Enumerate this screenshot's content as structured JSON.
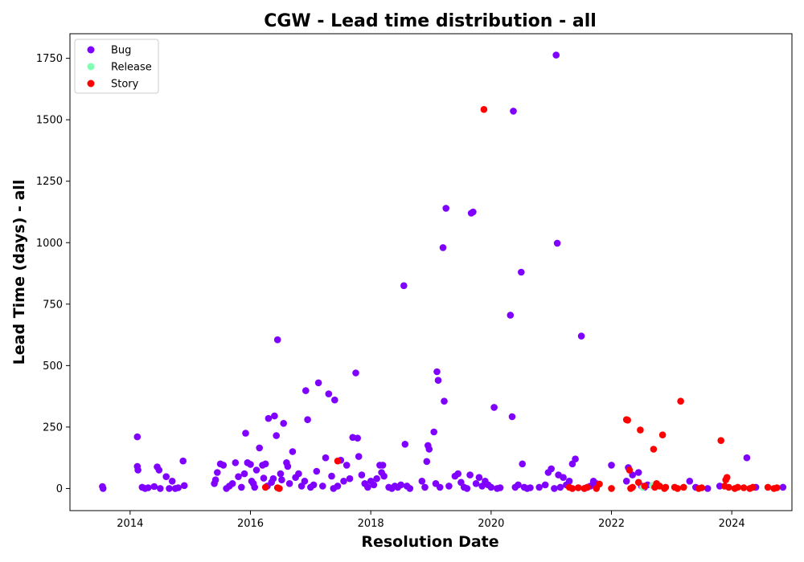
{
  "chart_data": {
    "type": "scatter",
    "title": "CGW - Lead time distribution - all",
    "xlabel": "Resolution Date",
    "ylabel": "Lead Time (days) - all",
    "xlim": [
      2013.0,
      2025.0
    ],
    "ylim": [
      -90,
      1850
    ],
    "x_ticks": [
      2014,
      2016,
      2018,
      2020,
      2022,
      2024
    ],
    "y_ticks": [
      0,
      250,
      500,
      750,
      1000,
      1250,
      1500,
      1750
    ],
    "grid": false,
    "legend_position": "top-left",
    "series": [
      {
        "name": "Bug",
        "color": "#8000ff",
        "points": [
          [
            2013.54,
            8
          ],
          [
            2013.55,
            0
          ],
          [
            2014.12,
            210
          ],
          [
            2014.12,
            90
          ],
          [
            2014.13,
            75
          ],
          [
            2014.2,
            5
          ],
          [
            2014.25,
            0
          ],
          [
            2014.3,
            3
          ],
          [
            2014.4,
            8
          ],
          [
            2014.45,
            88
          ],
          [
            2014.48,
            75
          ],
          [
            2014.5,
            0
          ],
          [
            2014.6,
            48
          ],
          [
            2014.65,
            0
          ],
          [
            2014.7,
            30
          ],
          [
            2014.75,
            0
          ],
          [
            2014.8,
            3
          ],
          [
            2014.88,
            112
          ],
          [
            2014.9,
            12
          ],
          [
            2015.4,
            20
          ],
          [
            2015.42,
            35
          ],
          [
            2015.45,
            65
          ],
          [
            2015.5,
            100
          ],
          [
            2015.55,
            95
          ],
          [
            2015.6,
            0
          ],
          [
            2015.65,
            10
          ],
          [
            2015.7,
            20
          ],
          [
            2015.75,
            105
          ],
          [
            2015.8,
            48
          ],
          [
            2015.85,
            5
          ],
          [
            2015.9,
            60
          ],
          [
            2015.95,
            105
          ],
          [
            2016.0,
            98
          ],
          [
            2016.02,
            30
          ],
          [
            2016.05,
            20
          ],
          [
            2016.07,
            5
          ],
          [
            2016.1,
            75
          ],
          [
            2015.92,
            225
          ],
          [
            2016.15,
            165
          ],
          [
            2016.2,
            95
          ],
          [
            2016.22,
            42
          ],
          [
            2016.25,
            100
          ],
          [
            2016.28,
            10
          ],
          [
            2016.3,
            285
          ],
          [
            2016.35,
            25
          ],
          [
            2016.38,
            40
          ],
          [
            2016.4,
            295
          ],
          [
            2016.43,
            215
          ],
          [
            2016.45,
            605
          ],
          [
            2016.5,
            60
          ],
          [
            2016.52,
            35
          ],
          [
            2016.55,
            265
          ],
          [
            2016.6,
            105
          ],
          [
            2016.62,
            90
          ],
          [
            2016.65,
            20
          ],
          [
            2016.7,
            150
          ],
          [
            2016.75,
            45
          ],
          [
            2016.8,
            60
          ],
          [
            2016.85,
            10
          ],
          [
            2016.9,
            30
          ],
          [
            2016.92,
            398
          ],
          [
            2016.95,
            280
          ],
          [
            2017.0,
            5
          ],
          [
            2017.05,
            15
          ],
          [
            2017.1,
            70
          ],
          [
            2017.13,
            430
          ],
          [
            2017.2,
            10
          ],
          [
            2017.25,
            125
          ],
          [
            2017.3,
            385
          ],
          [
            2017.35,
            50
          ],
          [
            2017.38,
            0
          ],
          [
            2017.4,
            360
          ],
          [
            2017.45,
            10
          ],
          [
            2017.5,
            115
          ],
          [
            2017.55,
            30
          ],
          [
            2017.6,
            95
          ],
          [
            2017.65,
            40
          ],
          [
            2017.7,
            208
          ],
          [
            2017.75,
            470
          ],
          [
            2017.78,
            205
          ],
          [
            2017.8,
            130
          ],
          [
            2017.85,
            55
          ],
          [
            2017.9,
            20
          ],
          [
            2017.95,
            5
          ],
          [
            2018.0,
            30
          ],
          [
            2018.05,
            15
          ],
          [
            2018.1,
            40
          ],
          [
            2018.15,
            95
          ],
          [
            2018.18,
            65
          ],
          [
            2018.2,
            95
          ],
          [
            2018.22,
            50
          ],
          [
            2018.3,
            5
          ],
          [
            2018.35,
            0
          ],
          [
            2018.4,
            10
          ],
          [
            2018.45,
            5
          ],
          [
            2018.5,
            15
          ],
          [
            2018.55,
            825
          ],
          [
            2018.57,
            180
          ],
          [
            2018.6,
            10
          ],
          [
            2018.65,
            0
          ],
          [
            2018.85,
            30
          ],
          [
            2018.9,
            5
          ],
          [
            2018.93,
            110
          ],
          [
            2018.95,
            175
          ],
          [
            2018.97,
            160
          ],
          [
            2019.05,
            230
          ],
          [
            2019.08,
            20
          ],
          [
            2019.1,
            475
          ],
          [
            2019.12,
            440
          ],
          [
            2019.15,
            5
          ],
          [
            2019.2,
            980
          ],
          [
            2019.22,
            355
          ],
          [
            2019.25,
            1140
          ],
          [
            2019.3,
            10
          ],
          [
            2019.4,
            50
          ],
          [
            2019.45,
            60
          ],
          [
            2019.5,
            25
          ],
          [
            2019.55,
            5
          ],
          [
            2019.6,
            0
          ],
          [
            2019.65,
            55
          ],
          [
            2019.67,
            1120
          ],
          [
            2019.7,
            1125
          ],
          [
            2019.75,
            20
          ],
          [
            2019.8,
            45
          ],
          [
            2019.85,
            10
          ],
          [
            2019.9,
            30
          ],
          [
            2019.95,
            15
          ],
          [
            2020.0,
            5
          ],
          [
            2020.05,
            330
          ],
          [
            2020.1,
            0
          ],
          [
            2020.15,
            3
          ],
          [
            2020.32,
            705
          ],
          [
            2020.35,
            292
          ],
          [
            2020.37,
            1535
          ],
          [
            2020.4,
            5
          ],
          [
            2020.45,
            15
          ],
          [
            2020.5,
            880
          ],
          [
            2020.52,
            100
          ],
          [
            2020.55,
            5
          ],
          [
            2020.6,
            0
          ],
          [
            2020.65,
            3
          ],
          [
            2020.8,
            5
          ],
          [
            2020.9,
            15
          ],
          [
            2020.95,
            65
          ],
          [
            2021.0,
            80
          ],
          [
            2021.05,
            0
          ],
          [
            2021.08,
            1763
          ],
          [
            2021.1,
            998
          ],
          [
            2021.12,
            55
          ],
          [
            2021.15,
            5
          ],
          [
            2021.2,
            45
          ],
          [
            2021.25,
            15
          ],
          [
            2021.3,
            30
          ],
          [
            2021.35,
            100
          ],
          [
            2021.4,
            120
          ],
          [
            2021.45,
            3
          ],
          [
            2021.5,
            620
          ],
          [
            2021.55,
            0
          ],
          [
            2021.6,
            5
          ],
          [
            2021.65,
            10
          ],
          [
            2021.7,
            30
          ],
          [
            2021.75,
            20
          ],
          [
            2022.0,
            95
          ],
          [
            2022.25,
            30
          ],
          [
            2022.28,
            85
          ],
          [
            2022.35,
            55
          ],
          [
            2022.45,
            65
          ],
          [
            2022.5,
            10
          ],
          [
            2022.55,
            5
          ],
          [
            2022.6,
            15
          ],
          [
            2023.3,
            30
          ],
          [
            2023.4,
            5
          ],
          [
            2023.6,
            0
          ],
          [
            2023.8,
            10
          ],
          [
            2024.25,
            125
          ],
          [
            2024.4,
            5
          ],
          [
            2024.85,
            5
          ]
        ]
      },
      {
        "name": "Release",
        "color": "#80ffb4",
        "points": [
          [
            2022.52,
            5
          ],
          [
            2022.68,
            12
          ],
          [
            2022.78,
            10
          ]
        ]
      },
      {
        "name": "Story",
        "color": "#ff0000",
        "points": [
          [
            2016.25,
            5
          ],
          [
            2016.45,
            3
          ],
          [
            2016.48,
            0
          ],
          [
            2017.45,
            112
          ],
          [
            2019.88,
            1542
          ],
          [
            2021.3,
            5
          ],
          [
            2021.35,
            0
          ],
          [
            2021.45,
            3
          ],
          [
            2021.55,
            0
          ],
          [
            2021.6,
            5
          ],
          [
            2021.75,
            0
          ],
          [
            2021.8,
            18
          ],
          [
            2022.0,
            0
          ],
          [
            2022.25,
            280
          ],
          [
            2022.27,
            278
          ],
          [
            2022.3,
            75
          ],
          [
            2022.32,
            0
          ],
          [
            2022.35,
            5
          ],
          [
            2022.48,
            238
          ],
          [
            2022.45,
            25
          ],
          [
            2022.55,
            10
          ],
          [
            2022.7,
            160
          ],
          [
            2022.72,
            5
          ],
          [
            2022.75,
            20
          ],
          [
            2022.8,
            10
          ],
          [
            2022.85,
            218
          ],
          [
            2022.88,
            0
          ],
          [
            2022.9,
            5
          ],
          [
            2023.05,
            5
          ],
          [
            2023.1,
            0
          ],
          [
            2023.15,
            355
          ],
          [
            2023.2,
            5
          ],
          [
            2023.45,
            0
          ],
          [
            2023.5,
            3
          ],
          [
            2023.82,
            195
          ],
          [
            2023.88,
            10
          ],
          [
            2023.9,
            35
          ],
          [
            2023.92,
            45
          ],
          [
            2023.95,
            5
          ],
          [
            2024.05,
            0
          ],
          [
            2024.1,
            5
          ],
          [
            2024.2,
            3
          ],
          [
            2024.3,
            0
          ],
          [
            2024.35,
            5
          ],
          [
            2024.6,
            5
          ],
          [
            2024.7,
            0
          ],
          [
            2024.75,
            3
          ]
        ]
      }
    ]
  }
}
